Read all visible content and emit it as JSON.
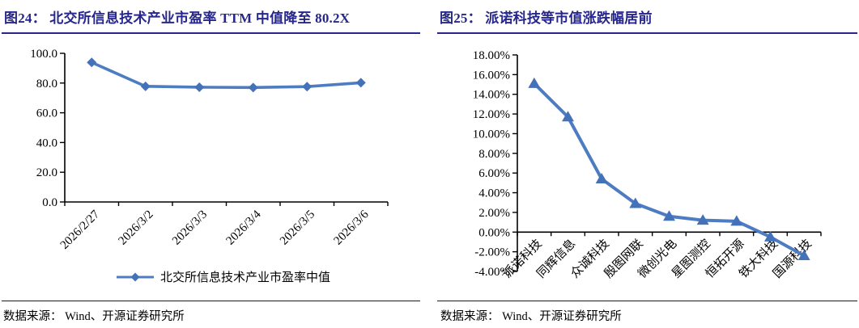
{
  "colors": {
    "title_navy": "#26268c",
    "series_blue": "#4d7cc3",
    "marker_blue": "#4472b9",
    "axis_black": "#000000"
  },
  "left_panel": {
    "title": "图24： 北交所信息技术产业市盈率 TTM 中值降至 80.2X",
    "legend_label": "北交所信息技术产业市盈率中值",
    "source": "数据来源： Wind、开源证券研究所"
  },
  "right_panel": {
    "title": "图25： 派诺科技等市值涨跌幅居前",
    "source": "数据来源： Wind、开源证券研究所"
  },
  "chart_data": [
    {
      "id": "pe-ttm-median",
      "type": "line",
      "title": "北交所信息技术产业市盈率 TTM 中值降至 80.2X",
      "categories": [
        "2026/2/27",
        "2026/3/2",
        "2026/3/3",
        "2026/3/4",
        "2026/3/5",
        "2026/3/6"
      ],
      "series": [
        {
          "name": "北交所信息技术产业市盈率中值",
          "values": [
            93.9,
            77.8,
            77.2,
            77.0,
            77.6,
            80.2
          ]
        }
      ],
      "ylim": [
        0,
        100
      ],
      "ytick_step": 20,
      "ytick_format": "fixed1",
      "marker": "diamond",
      "grid": false,
      "legend_position": "bottom"
    },
    {
      "id": "market-cap-change",
      "type": "line",
      "title": "派诺科技等市值涨跌幅居前",
      "categories": [
        "派诺科技",
        "同辉信息",
        "众诚科技",
        "殷图网联",
        "微创光电",
        "星图测控",
        "恒拓开源",
        "铁大科技",
        "国源科技"
      ],
      "series": [
        {
          "name": "市值涨跌幅",
          "values": [
            15.1,
            11.7,
            5.4,
            2.9,
            1.6,
            1.2,
            1.1,
            -0.5,
            -2.4
          ]
        }
      ],
      "ylim": [
        -4,
        18
      ],
      "ytick_step": 2,
      "ytick_format": "percent2",
      "marker": "triangle",
      "grid": false,
      "legend_position": "none"
    }
  ]
}
